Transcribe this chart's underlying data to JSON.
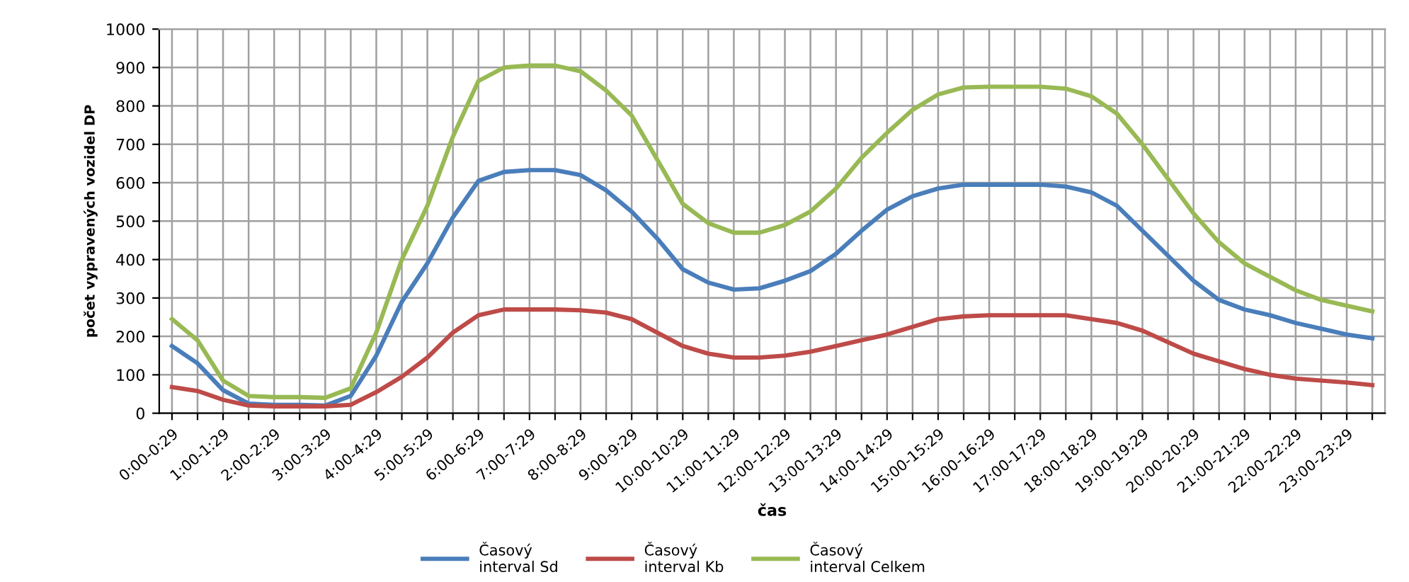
{
  "chart_data": {
    "type": "line",
    "xlabel": "čas",
    "ylabel": "počet vypravených vozidel DP",
    "categories": [
      "0:00-0:29",
      null,
      "1:00-1:29",
      null,
      "2:00-2:29",
      null,
      "3:00-3:29",
      null,
      "4:00-4:29",
      null,
      "5:00-5:29",
      null,
      "6:00-6:29",
      null,
      "7:00-7:29",
      null,
      "8:00-8:29",
      null,
      "9:00-9:29",
      null,
      "10:00-10:29",
      null,
      "11:00-11:29",
      null,
      "12:00-12:29",
      null,
      "13:00-13:29",
      null,
      "14:00-14:29",
      null,
      "15:00-15:29",
      null,
      "16:00-16:29",
      null,
      "17:00-17:29",
      null,
      "18:00-18:29",
      null,
      "19:00-19:29",
      null,
      "20:00-20:29",
      null,
      "21:00-21:29",
      null,
      "22:00-22:29",
      null,
      "23:00-23:29",
      null
    ],
    "series": [
      {
        "name": "Časový interval Sd",
        "color": "#4a7ebb",
        "values": [
          175,
          130,
          60,
          25,
          22,
          22,
          20,
          45,
          150,
          290,
          390,
          510,
          605,
          628,
          633,
          633,
          620,
          580,
          525,
          455,
          375,
          340,
          322,
          325,
          345,
          370,
          415,
          475,
          530,
          565,
          585,
          595,
          595,
          595,
          595,
          590,
          575,
          540,
          475,
          410,
          345,
          295,
          270,
          255,
          235,
          220,
          205,
          195
        ]
      },
      {
        "name": "Časový interval Kb",
        "color": "#be4b48",
        "values": [
          68,
          58,
          35,
          20,
          18,
          18,
          18,
          22,
          55,
          95,
          145,
          210,
          255,
          270,
          270,
          270,
          268,
          262,
          245,
          210,
          175,
          155,
          145,
          145,
          150,
          160,
          175,
          190,
          205,
          225,
          245,
          252,
          255,
          255,
          255,
          255,
          245,
          235,
          215,
          185,
          155,
          135,
          115,
          100,
          90,
          85,
          80,
          73
        ]
      },
      {
        "name": "Časový interval Celkem",
        "color": "#98b954",
        "values": [
          245,
          190,
          85,
          45,
          42,
          42,
          40,
          65,
          210,
          400,
          540,
          720,
          865,
          900,
          905,
          905,
          890,
          840,
          775,
          660,
          545,
          495,
          470,
          470,
          490,
          525,
          585,
          665,
          730,
          790,
          830,
          848,
          850,
          850,
          850,
          845,
          825,
          780,
          700,
          610,
          520,
          445,
          390,
          355,
          320,
          295,
          280,
          265
        ]
      }
    ],
    "ylim": [
      0,
      1000
    ],
    "yticks": [
      0,
      100,
      200,
      300,
      400,
      500,
      600,
      700,
      800,
      900,
      1000
    ],
    "grid": true,
    "legend": "bottom",
    "marker": "none",
    "line_style": "solid"
  }
}
